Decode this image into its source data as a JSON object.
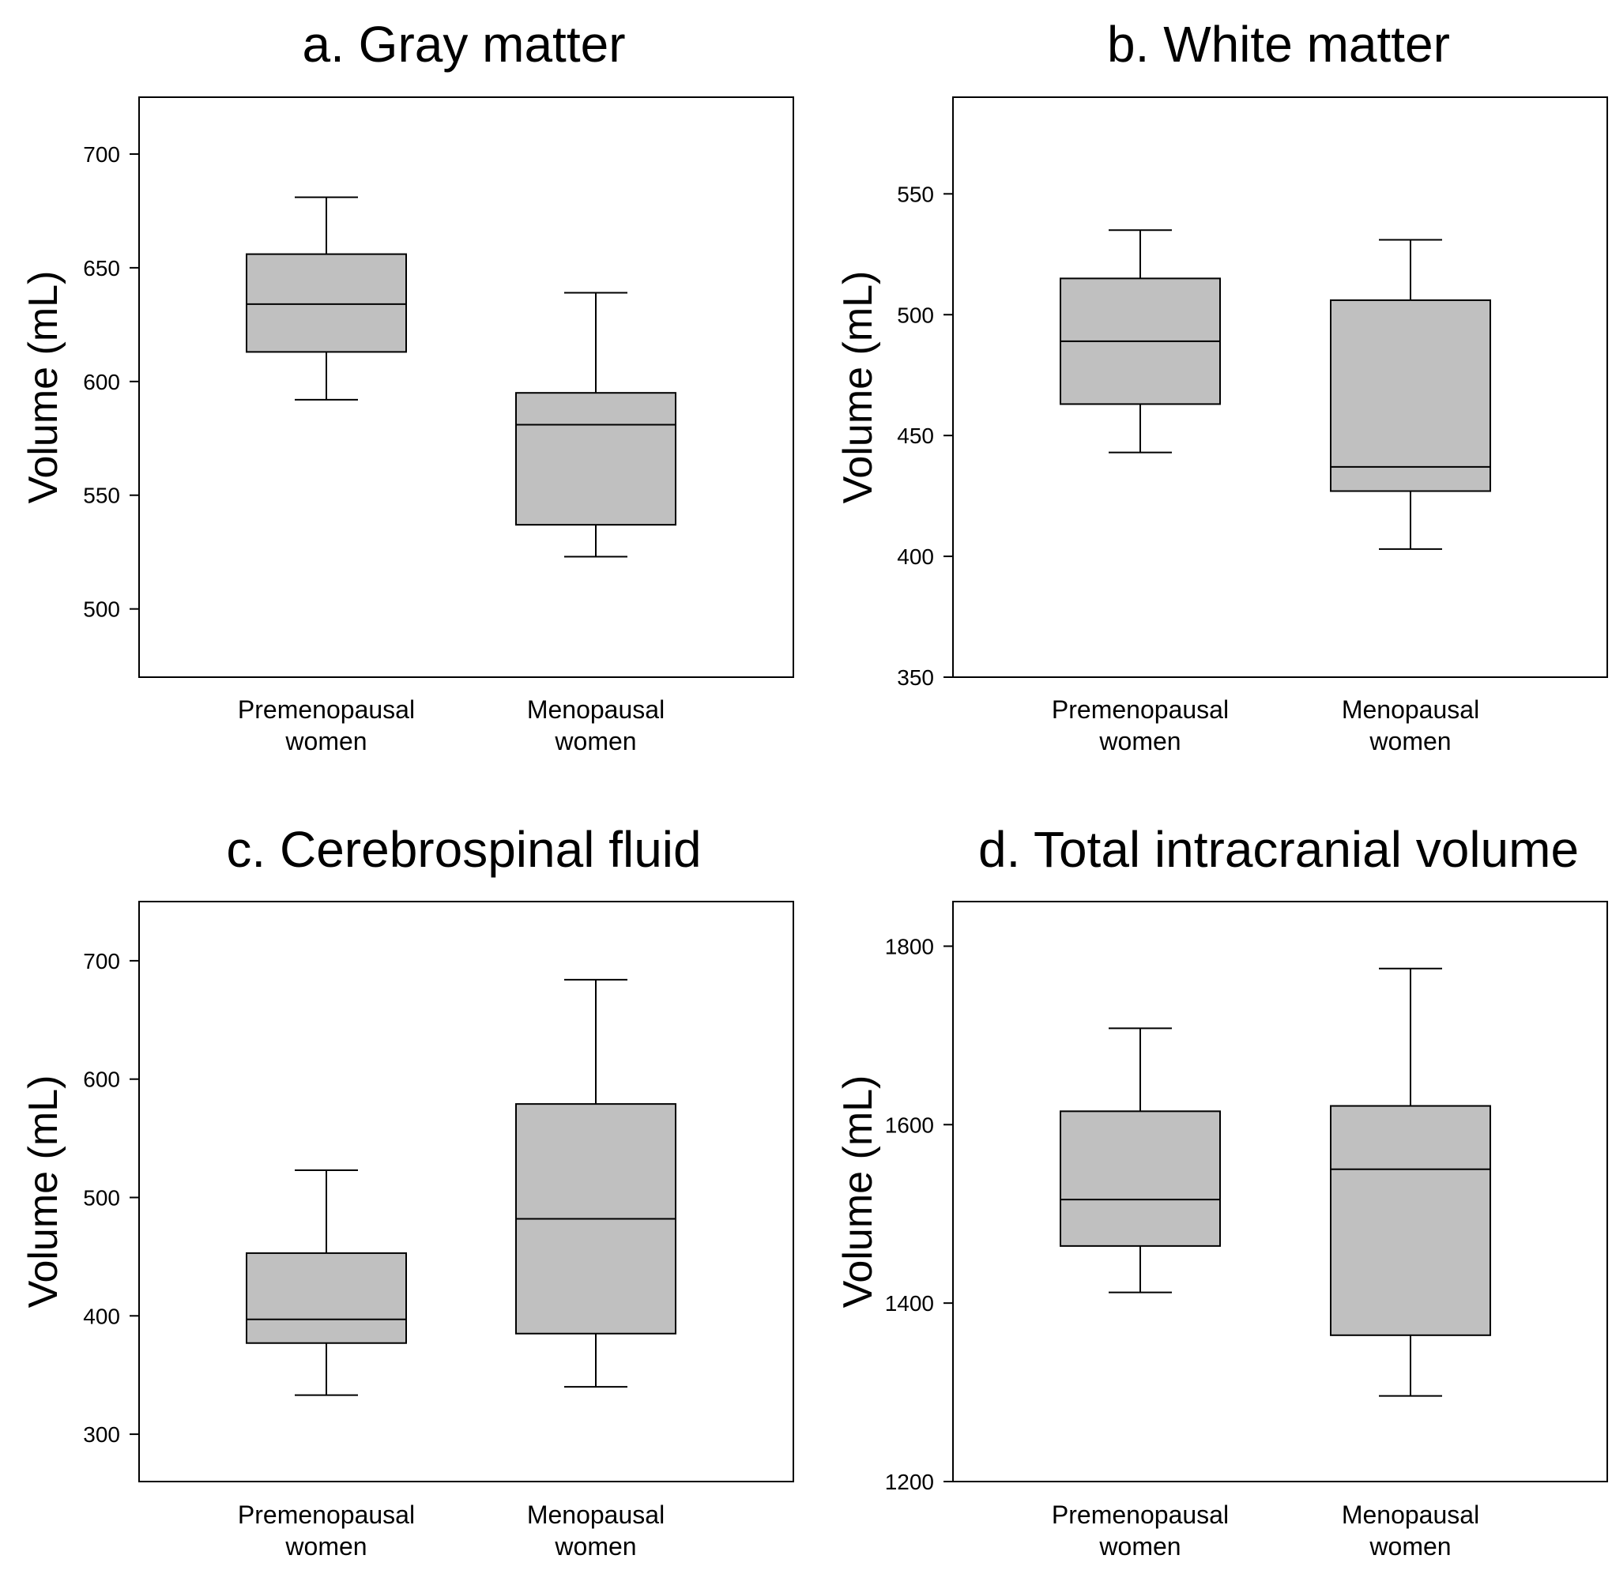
{
  "colors": {
    "box_fill": "#c0c0c0",
    "stroke": "#000000",
    "background": "#ffffff"
  },
  "chart_data": [
    {
      "type": "boxplot",
      "title": "a. Gray matter",
      "ylabel": "Volume (mL)",
      "ylim": [
        470,
        725
      ],
      "yticks": [
        500,
        550,
        600,
        650,
        700
      ],
      "categories": [
        [
          "Premenopausal",
          "women"
        ],
        [
          "Menopausal",
          "women"
        ]
      ],
      "boxes": [
        {
          "min": 592,
          "q1": 613,
          "median": 634,
          "q3": 656,
          "max": 681
        },
        {
          "min": 523,
          "q1": 537,
          "median": 581,
          "q3": 595,
          "max": 639
        }
      ]
    },
    {
      "type": "boxplot",
      "title": "b. White matter",
      "ylabel": "Volume (mL)",
      "ylim": [
        350,
        590
      ],
      "yticks": [
        350,
        400,
        450,
        500,
        550
      ],
      "categories": [
        [
          "Premenopausal",
          "women"
        ],
        [
          "Menopausal",
          "women"
        ]
      ],
      "boxes": [
        {
          "min": 443,
          "q1": 463,
          "median": 489,
          "q3": 515,
          "max": 535
        },
        {
          "min": 403,
          "q1": 427,
          "median": 437,
          "q3": 506,
          "max": 531
        }
      ]
    },
    {
      "type": "boxplot",
      "title": "c. Cerebrospinal fluid",
      "ylabel": "Volume (mL)",
      "ylim": [
        260,
        750
      ],
      "yticks": [
        300,
        400,
        500,
        600,
        700
      ],
      "categories": [
        [
          "Premenopausal",
          "women"
        ],
        [
          "Menopausal",
          "women"
        ]
      ],
      "boxes": [
        {
          "min": 333,
          "q1": 377,
          "median": 397,
          "q3": 453,
          "max": 523
        },
        {
          "min": 340,
          "q1": 385,
          "median": 482,
          "q3": 579,
          "max": 684
        }
      ]
    },
    {
      "type": "boxplot",
      "title": "d. Total intracranial volume",
      "ylabel": "Volume (mL)",
      "ylim": [
        1200,
        1850
      ],
      "yticks": [
        1200,
        1400,
        1600,
        1800
      ],
      "categories": [
        [
          "Premenopausal",
          "women"
        ],
        [
          "Menopausal",
          "women"
        ]
      ],
      "boxes": [
        {
          "min": 1412,
          "q1": 1464,
          "median": 1516,
          "q3": 1615,
          "max": 1708
        },
        {
          "min": 1296,
          "q1": 1364,
          "median": 1550,
          "q3": 1621,
          "max": 1775
        }
      ]
    }
  ]
}
